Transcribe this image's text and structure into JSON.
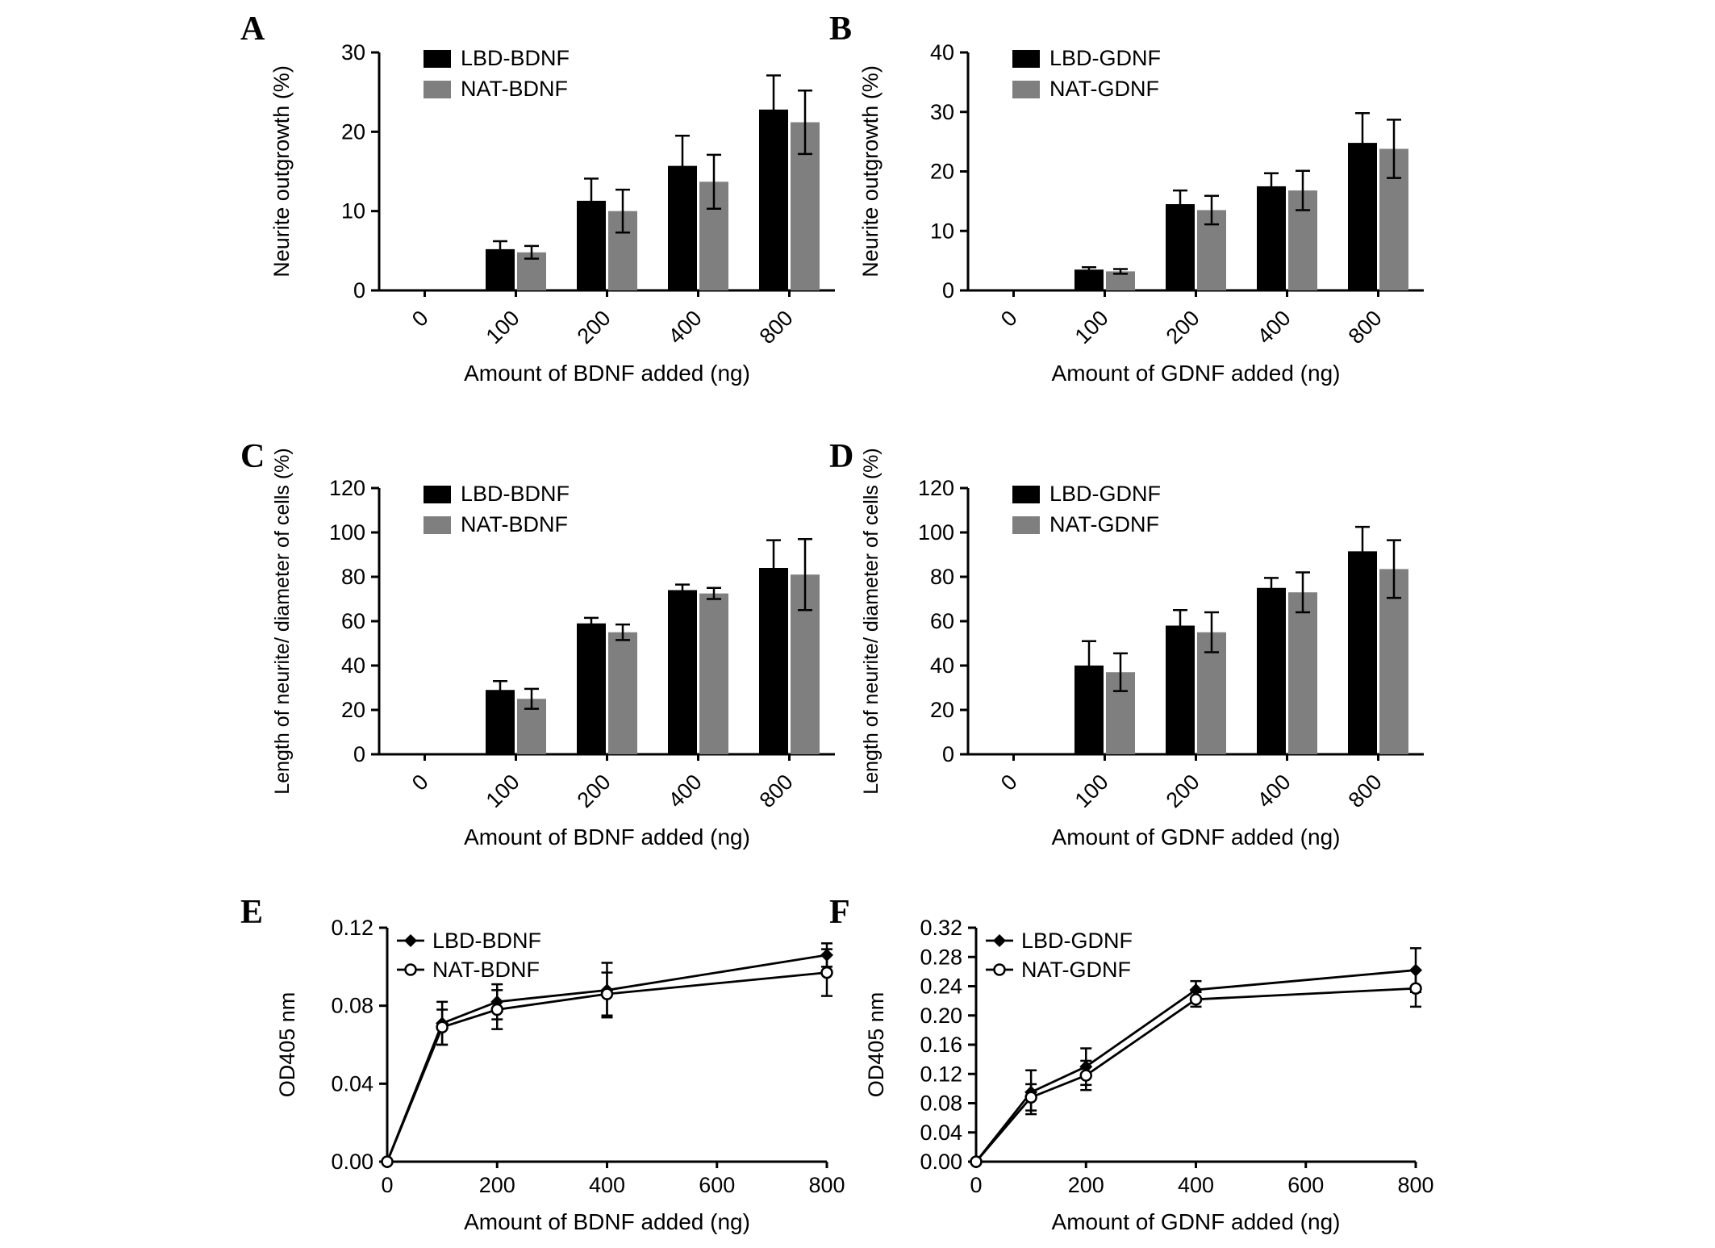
{
  "figure": {
    "background": "#ffffff",
    "axis_color": "#000000",
    "primary_color": "#000000",
    "secondary_color": "#7f7f7f",
    "panel_labels": [
      "A",
      "B",
      "C",
      "D",
      "E",
      "F"
    ]
  },
  "chart_data": [
    {
      "panel": "A",
      "type": "bar",
      "title": "",
      "xlabel": "Amount of BDNF added (ng)",
      "ylabel": "Neurite outgrowth (%)",
      "categories": [
        "0",
        "100",
        "200",
        "400",
        "800"
      ],
      "ylim": [
        0,
        30
      ],
      "ytick_step": 10,
      "grid": false,
      "legend_position": "top-left",
      "series": [
        {
          "name": "LBD-BDNF",
          "color": "#000000",
          "values": [
            0,
            5.2,
            11.3,
            15.7,
            22.8
          ],
          "errors": [
            0,
            1.0,
            2.8,
            3.8,
            4.3
          ]
        },
        {
          "name": "NAT-BDNF",
          "color": "#7f7f7f",
          "values": [
            0,
            4.8,
            10.0,
            13.7,
            21.2
          ],
          "errors": [
            0,
            0.8,
            2.7,
            3.4,
            4.0
          ]
        }
      ]
    },
    {
      "panel": "B",
      "type": "bar",
      "title": "",
      "xlabel": "Amount of GDNF added (ng)",
      "ylabel": "Neurite outgrowth (%)",
      "categories": [
        "0",
        "100",
        "200",
        "400",
        "800"
      ],
      "ylim": [
        0,
        40
      ],
      "ytick_step": 10,
      "grid": false,
      "legend_position": "top-left",
      "series": [
        {
          "name": "LBD-GDNF",
          "color": "#000000",
          "values": [
            0,
            3.5,
            14.5,
            17.5,
            24.8
          ],
          "errors": [
            0,
            0.4,
            2.3,
            2.2,
            5.0
          ]
        },
        {
          "name": "NAT-GDNF",
          "color": "#7f7f7f",
          "values": [
            0,
            3.2,
            13.5,
            16.8,
            23.8
          ],
          "errors": [
            0,
            0.4,
            2.4,
            3.3,
            4.9
          ]
        }
      ]
    },
    {
      "panel": "C",
      "type": "bar",
      "title": "",
      "xlabel": "Amount of BDNF added (ng)",
      "ylabel": "Length of neurite/ diameter of cells (%)",
      "categories": [
        "0",
        "100",
        "200",
        "400",
        "800"
      ],
      "ylim": [
        0,
        120
      ],
      "ytick_step": 20,
      "grid": false,
      "legend_position": "top-left",
      "series": [
        {
          "name": "LBD-BDNF",
          "color": "#000000",
          "values": [
            0,
            29,
            59,
            74,
            84
          ],
          "errors": [
            0,
            4.0,
            2.5,
            2.5,
            12.5
          ]
        },
        {
          "name": "NAT-BDNF",
          "color": "#7f7f7f",
          "values": [
            0,
            25,
            55,
            72.5,
            81
          ],
          "errors": [
            0,
            4.5,
            3.5,
            2.5,
            16.0
          ]
        }
      ]
    },
    {
      "panel": "D",
      "type": "bar",
      "title": "",
      "xlabel": "Amount of GDNF added (ng)",
      "ylabel": "Length of neurite/ diameter of cells (%)",
      "categories": [
        "0",
        "100",
        "200",
        "400",
        "800"
      ],
      "ylim": [
        0,
        120
      ],
      "ytick_step": 20,
      "grid": false,
      "legend_position": "top-left",
      "series": [
        {
          "name": "LBD-GDNF",
          "color": "#000000",
          "values": [
            0,
            40,
            58,
            75,
            91.5
          ],
          "errors": [
            0,
            11.0,
            7.0,
            4.5,
            11.0
          ]
        },
        {
          "name": "NAT-GDNF",
          "color": "#7f7f7f",
          "values": [
            0,
            37,
            55,
            73,
            83.5
          ],
          "errors": [
            0,
            8.5,
            9.0,
            9.0,
            13.0
          ]
        }
      ]
    },
    {
      "panel": "E",
      "type": "line",
      "title": "",
      "xlabel": "Amount of BDNF added (ng)",
      "ylabel": "OD405 nm",
      "x": [
        0,
        100,
        200,
        400,
        800
      ],
      "xlim": [
        0,
        800
      ],
      "xticks": [
        0,
        200,
        400,
        600,
        800
      ],
      "ylim": [
        0,
        0.12
      ],
      "ytick_step": 0.04,
      "y_decimals": 2,
      "grid": false,
      "legend_position": "top-left",
      "series": [
        {
          "name": "LBD-BDNF",
          "marker": "filled-diamond",
          "color": "#000000",
          "values": [
            0,
            0.071,
            0.082,
            0.088,
            0.106
          ],
          "errors": [
            0,
            0.011,
            0.009,
            0.014,
            0.006
          ]
        },
        {
          "name": "NAT-BDNF",
          "marker": "open-circle",
          "color": "#000000",
          "values": [
            0,
            0.069,
            0.078,
            0.086,
            0.097
          ],
          "errors": [
            0,
            0.009,
            0.01,
            0.011,
            0.012
          ]
        }
      ]
    },
    {
      "panel": "F",
      "type": "line",
      "title": "",
      "xlabel": "Amount of GDNF added (ng)",
      "ylabel": "OD405 nm",
      "x": [
        0,
        100,
        200,
        400,
        800
      ],
      "xlim": [
        0,
        800
      ],
      "xticks": [
        0,
        200,
        400,
        600,
        800
      ],
      "ylim": [
        0,
        0.32
      ],
      "ytick_step": 0.04,
      "y_decimals": 2,
      "grid": false,
      "legend_position": "top-left",
      "series": [
        {
          "name": "LBD-GDNF",
          "marker": "filled-diamond",
          "color": "#000000",
          "values": [
            0,
            0.095,
            0.13,
            0.235,
            0.262
          ],
          "errors": [
            0,
            0.03,
            0.025,
            0.012,
            0.03
          ]
        },
        {
          "name": "NAT-GDNF",
          "marker": "open-circle",
          "color": "#000000",
          "values": [
            0,
            0.088,
            0.118,
            0.222,
            0.237
          ],
          "errors": [
            0,
            0.018,
            0.02,
            0.01,
            0.025
          ]
        }
      ]
    }
  ]
}
